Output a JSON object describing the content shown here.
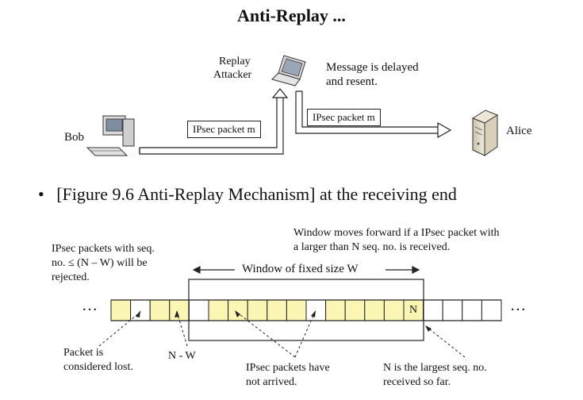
{
  "title": "Anti-Replay ...",
  "top_diagram": {
    "bob": "Bob",
    "alice": "Alice",
    "attacker_line1": "Replay",
    "attacker_line2": "Attacker",
    "delay_line1": "Message is delayed",
    "delay_line2": "and resent.",
    "packet1": "IPsec packet m",
    "packet2": "IPsec packet m"
  },
  "bullet": {
    "mark": "•",
    "text": "[Figure 9.6 Anti-Replay Mechanism] at the receiving end"
  },
  "window_diagram": {
    "reject_line1": "IPsec packets with seq.",
    "reject_line2": "no. ≤ (N – W) will be",
    "reject_line3": "rejected.",
    "move_line1": "Window moves forward if a IPsec packet with",
    "move_line2": "a larger than N seq. no. is received.",
    "window_label": "Window of fixed size W",
    "ellipsis_left": "…",
    "ellipsis_right": "…",
    "n_cell": "N",
    "lost_line1": "Packet is",
    "lost_line2": "considered lost.",
    "nw_label": "N - W",
    "notarrived_line1": "IPsec packets have",
    "notarrived_line2": "not arrived.",
    "largest_line1": "N is the largest seq. no.",
    "largest_line2": "received so far.",
    "colors": {
      "received": "#fbf6b4",
      "empty": "#ffffff",
      "stroke": "#222222"
    }
  }
}
